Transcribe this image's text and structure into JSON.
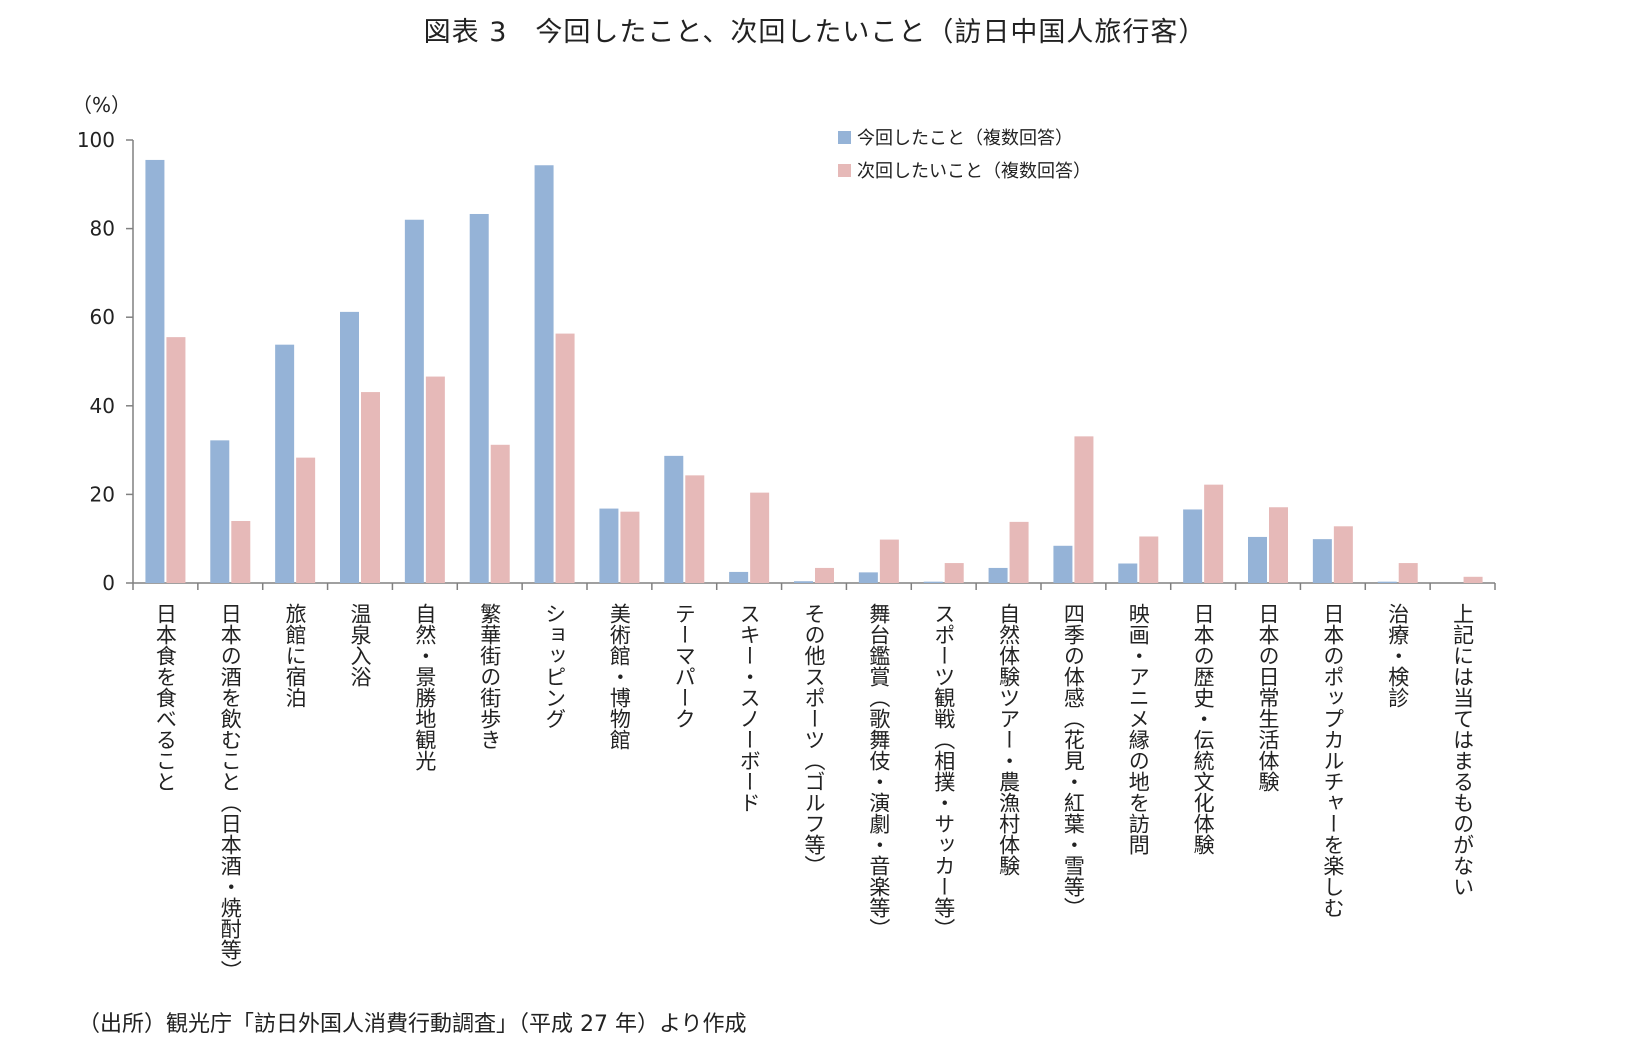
{
  "title": "図表 3　今回したこと、次回したいこと（訪日中国人旅行客）",
  "unit_label": "（%）",
  "source": "（出所）観光庁「訪日外国人消費行動調査」（平成 27 年）より作成",
  "colors": {
    "current": "#95b3d7",
    "next": "#e6b9b8",
    "axis": "#808080"
  },
  "chart_data": {
    "type": "bar",
    "title": "",
    "xlabel": "",
    "ylabel": "（%）",
    "ylim": [
      0,
      100
    ],
    "yticks": [
      0,
      20,
      40,
      60,
      80,
      100
    ],
    "legend_position": "top-right",
    "categories": [
      "日本食を食べること",
      "日本の酒を飲むこと（日本酒・焼酎等）",
      "旅館に宿泊",
      "温泉入浴",
      "自然・景勝地観光",
      "繁華街の街歩き",
      "ショッピング",
      "美術館・博物館",
      "テーマパーク",
      "スキー・スノーボード",
      "その他スポーツ（ゴルフ等）",
      "舞台鑑賞（歌舞伎・演劇・音楽等）",
      "スポーツ観戦（相撲・サッカー等）",
      "自然体験ツアー・農漁村体験",
      "四季の体感（花見・紅葉・雪等）",
      "映画・アニメ縁の地を訪問",
      "日本の歴史・伝統文化体験",
      "日本の日常生活体験",
      "日本のポップカルチャーを楽しむ",
      "治療・検診",
      "上記には当てはまるものがない"
    ],
    "series": [
      {
        "name": "今回したこと（複数回答）",
        "values": [
          95.5,
          32.2,
          53.8,
          61.2,
          82.0,
          83.3,
          94.3,
          16.8,
          28.7,
          2.5,
          0.4,
          2.4,
          0.3,
          3.4,
          8.4,
          4.4,
          16.6,
          10.4,
          9.9,
          0.3,
          0.0
        ]
      },
      {
        "name": "次回したいこと（複数回答）",
        "values": [
          55.5,
          14.0,
          28.3,
          43.1,
          46.6,
          31.2,
          56.3,
          16.1,
          24.3,
          20.4,
          3.4,
          9.8,
          4.5,
          13.8,
          33.1,
          10.5,
          22.2,
          17.1,
          12.8,
          4.5,
          1.4
        ]
      }
    ]
  }
}
